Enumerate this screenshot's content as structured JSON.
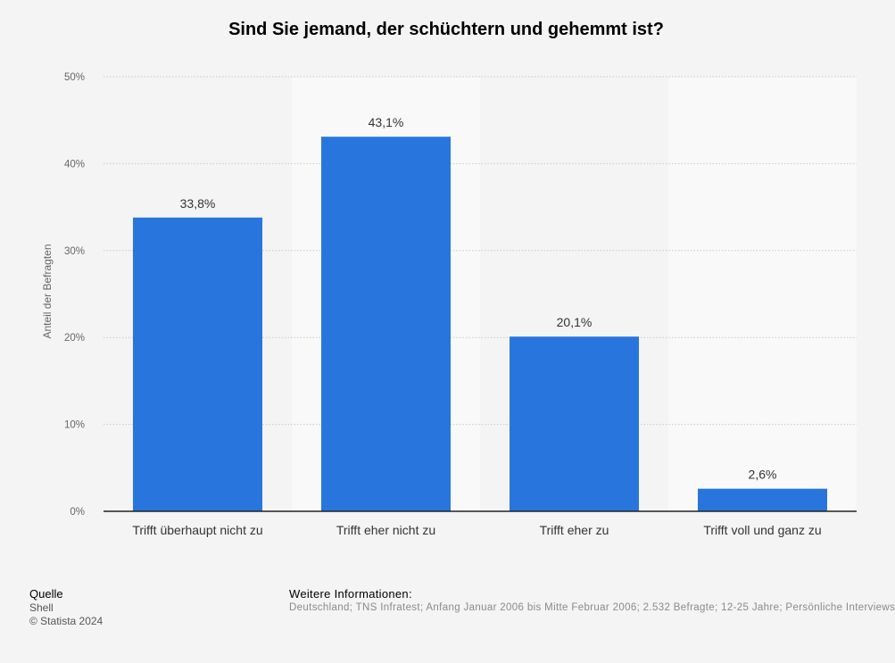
{
  "chart_data": {
    "type": "bar",
    "title": "Sind Sie jemand, der schüchtern und gehemmt ist?",
    "ylabel": "Anteil der Befragten",
    "xlabel": "",
    "ylim": [
      0,
      50
    ],
    "yticks": [
      "0%",
      "10%",
      "20%",
      "30%",
      "40%",
      "50%"
    ],
    "ytick_values": [
      0,
      10,
      20,
      30,
      40,
      50
    ],
    "categories": [
      "Trifft überhaupt nicht zu",
      "Trifft eher nicht zu",
      "Trifft eher zu",
      "Trifft voll und ganz zu"
    ],
    "values": [
      33.8,
      43.1,
      20.1,
      2.6
    ],
    "value_labels": [
      "33,8%",
      "43,1%",
      "20,1%",
      "2,6%"
    ],
    "bar_color": "#2876dd",
    "grid": true,
    "legend": "none"
  },
  "footer": {
    "source_heading": "Quelle",
    "source_name": "Shell",
    "copyright": "© Statista 2024",
    "info_heading": "Weitere Informationen:",
    "info_text": "Deutschland; TNS Infratest; Anfang Januar 2006 bis Mitte Februar 2006; 2.532 Befragte; 12-25 Jahre; Persönliche Interviews"
  }
}
